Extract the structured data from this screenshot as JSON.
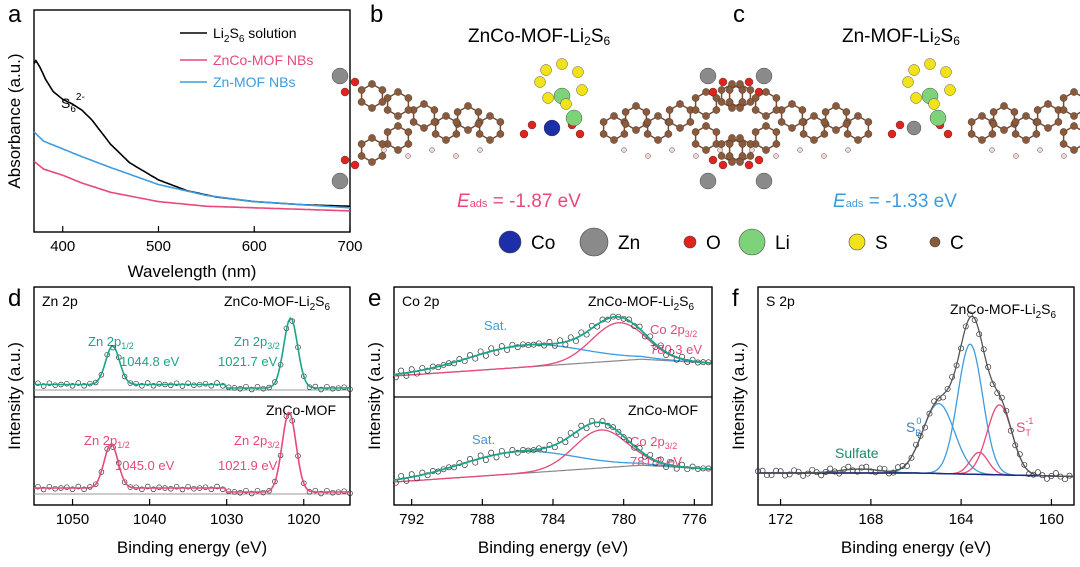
{
  "panels": {
    "a": {
      "letter": "a",
      "chart_data": {
        "type": "line",
        "title": "",
        "xlabel": "Wavelength (nm)",
        "ylabel": "Absorbance (a.u.)",
        "xlim": [
          370,
          700
        ],
        "xticks": [
          400,
          500,
          600,
          700
        ],
        "xtick_labels": [
          "400",
          "500",
          "600",
          "700"
        ],
        "annotation": "S6 2-",
        "series": [
          {
            "name": "Li2S6 solution",
            "color": "#000000",
            "x": [
              370,
              372,
              376,
              382,
              390,
              400,
              410,
              420,
              430,
              440,
              450,
              470,
              500,
              530,
              560,
              600,
              650,
              700
            ],
            "y": [
              0.97,
              0.99,
              0.95,
              0.87,
              0.79,
              0.74,
              0.71,
              0.67,
              0.61,
              0.53,
              0.45,
              0.33,
              0.22,
              0.15,
              0.11,
              0.08,
              0.06,
              0.05
            ]
          },
          {
            "name": "ZnCo-MOF NBs",
            "color": "#e8487a",
            "x": [
              370,
              380,
              400,
              420,
              450,
              500,
              550,
              600,
              650,
              700
            ],
            "y": [
              0.34,
              0.29,
              0.25,
              0.2,
              0.14,
              0.08,
              0.05,
              0.04,
              0.03,
              0.02
            ]
          },
          {
            "name": "Zn-MOF NBs",
            "color": "#3e9be0",
            "x": [
              370,
              380,
              400,
              420,
              450,
              500,
              550,
              600,
              650,
              700
            ],
            "y": [
              0.53,
              0.47,
              0.42,
              0.37,
              0.3,
              0.19,
              0.12,
              0.08,
              0.06,
              0.04
            ]
          }
        ],
        "legend": [
          {
            "name": "Li",
            "sub": "2",
            "mid": "S",
            "sub2": "6",
            "tail": " solution",
            "color": "#000000"
          },
          {
            "name": "ZnCo-MOF NBs",
            "color": "#e8487a"
          },
          {
            "name": "Zn-MOF NBs",
            "color": "#3e9be0"
          }
        ]
      }
    },
    "b": {
      "letter": "b",
      "title": "ZnCo-MOF-Li",
      "title_sub": "2",
      "title_tail": "S",
      "title_sub2": "6",
      "energy_label": "E",
      "energy_sub": "ads",
      "energy_value": " = -1.87 eV",
      "energy_color": "#e8487a"
    },
    "c": {
      "letter": "c",
      "title": "Zn-MOF-Li",
      "title_sub": "2",
      "title_tail": "S",
      "title_sub2": "6",
      "energy_label": "E",
      "energy_sub": "ads",
      "energy_value": " = -1.33 eV",
      "energy_color": "#3e9be0"
    },
    "atom_legend": [
      {
        "label": "Co",
        "color": "#1c2fa8",
        "icon": "co-atom-icon"
      },
      {
        "label": "Zn",
        "color": "#8a8a8a",
        "icon": "zn-atom-icon"
      },
      {
        "label": "O",
        "color": "#e0231d",
        "icon": "o-atom-icon"
      },
      {
        "label": "Li",
        "color": "#7ed37a",
        "icon": "li-atom-icon"
      },
      {
        "label": "S",
        "color": "#f2e21a",
        "icon": "s-atom-icon"
      },
      {
        "label": "C",
        "color": "#8a5a3a",
        "icon": "c-atom-icon"
      }
    ],
    "d": {
      "letter": "d",
      "chart_data": {
        "type": "line",
        "xlabel": "Binding energy (eV)",
        "ylabel": "Intensity (a.u.)",
        "xlim": [
          1055,
          1014
        ],
        "xticks": [
          1050,
          1040,
          1030,
          1020
        ],
        "xtick_labels": [
          "1050",
          "1040",
          "1030",
          "1020"
        ],
        "core_level": "Zn 2p",
        "subplots": [
          {
            "sample": "ZnCo-MOF-Li",
            "sample_sub": "2",
            "sample_tail": "S",
            "sample_sub2": "6",
            "color": "#1aa58a",
            "peaks": [
              {
                "label": "Zn 2p",
                "sub": "1/2",
                "energy": "1044.8 eV",
                "center": 1044.8,
                "height": 0.55
              },
              {
                "label": "Zn 2p",
                "sub": "3/2",
                "energy": "1021.7 eV",
                "center": 1021.7,
                "height": 1.0
              }
            ]
          },
          {
            "sample": "ZnCo-MOF",
            "color": "#e8487a",
            "peaks": [
              {
                "label": "Zn 2p",
                "sub": "1/2",
                "energy": "1045.0 eV",
                "center": 1045.0,
                "height": 0.55
              },
              {
                "label": "Zn 2p",
                "sub": "3/2",
                "energy": "1021.9 eV",
                "center": 1021.9,
                "height": 1.0
              }
            ]
          }
        ]
      }
    },
    "e": {
      "letter": "e",
      "chart_data": {
        "type": "line",
        "xlabel": "Binding energy (eV)",
        "ylabel": "Intensity (a.u.)",
        "xlim": [
          793,
          775
        ],
        "xticks": [
          792,
          788,
          784,
          780,
          776
        ],
        "xtick_labels": [
          "792",
          "788",
          "784",
          "780",
          "776"
        ],
        "core_level": "Co 2p",
        "subplots": [
          {
            "sample": "ZnCo-MOF-Li",
            "sample_sub": "2",
            "sample_tail": "S",
            "sample_sub2": "6",
            "sat_label": "Sat.",
            "peak_label": "Co 2p",
            "peak_sub": "3/2",
            "peak_energy": "780.3 eV",
            "peak_center": 780.3,
            "sat_center": 785.5
          },
          {
            "sample": "ZnCo-MOF",
            "sat_label": "Sat.",
            "peak_label": "Co 2p",
            "peak_sub": "3/2",
            "peak_energy": "781.3 eV",
            "peak_center": 781.3,
            "sat_center": 786.0
          }
        ]
      }
    },
    "f": {
      "letter": "f",
      "chart_data": {
        "type": "line",
        "xlabel": "Binding energy (eV)",
        "ylabel": "Intensity (a.u.)",
        "xlim": [
          173,
          159
        ],
        "xticks": [
          172,
          168,
          164,
          160
        ],
        "xtick_labels": [
          "172",
          "168",
          "164",
          "160"
        ],
        "core_level": "S 2p",
        "sample": "ZnCo-MOF-Li",
        "sample_sub": "2",
        "sample_tail": "S",
        "sample_sub2": "6",
        "labels": [
          {
            "text": "Sulfate",
            "color": "#1a8a6a"
          },
          {
            "text": "S",
            "sub": "B",
            "sup": "0",
            "color": "#3e7ec0"
          },
          {
            "text": "S",
            "sub": "T",
            "sup": "-1",
            "color": "#e8487a"
          }
        ],
        "components": [
          {
            "name": "S_B^0",
            "center": 165.0,
            "color": "#3e9be0"
          },
          {
            "name": "main",
            "center": 163.6,
            "color": "#3e9be0"
          },
          {
            "name": "S_T^-1 a",
            "center": 163.2,
            "color": "#e8487a"
          },
          {
            "name": "S_T^-1 b",
            "center": 162.2,
            "color": "#e8487a"
          },
          {
            "name": "Sulfate",
            "center": 168.5,
            "color": "#1a8a6a"
          }
        ]
      }
    }
  }
}
